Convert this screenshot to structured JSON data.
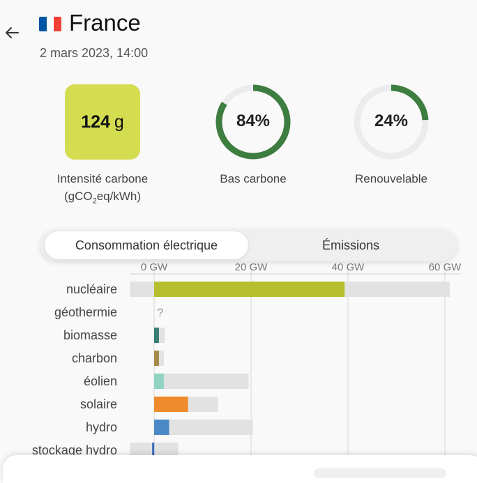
{
  "header": {
    "country": "France",
    "datetime": "2 mars 2023, 14:00",
    "flag_colors": [
      "#0055a4",
      "#ffffff",
      "#ef4135"
    ],
    "back_icon": "arrow-left-icon"
  },
  "metrics": {
    "intensity": {
      "value": "124",
      "unit": "g",
      "label_line1": "Intensité carbone",
      "label_line2_pre": "(gCO",
      "label_line2_sub": "2",
      "label_line2_post": "eq/kWh)",
      "color": "#d4dc50"
    },
    "low_carbon": {
      "text": "84%",
      "fraction": 0.84,
      "label": "Bas carbone",
      "color": "#3d7d3f"
    },
    "renewable": {
      "text": "24%",
      "fraction": 0.24,
      "label": "Renouvelable",
      "color": "#3d7d3f"
    }
  },
  "tabs": [
    {
      "label": "Consommation électrique",
      "active": true
    },
    {
      "label": "Émissions",
      "active": false
    }
  ],
  "chart_data": {
    "type": "bar",
    "x_ticks": [
      "0 GW",
      "20 GW",
      "40 GW",
      "60 GW"
    ],
    "xlim": [
      0,
      60
    ],
    "grid": true,
    "categories": [
      "nucléaire",
      "géothermie",
      "biomasse",
      "charbon",
      "éolien",
      "solaire",
      "hydro",
      "stockage hydro"
    ],
    "series": [
      {
        "values": [
          39.3,
          null,
          1.0,
          1.0,
          2.0,
          7.0,
          3.1,
          -0.4
        ]
      },
      {
        "values": [
          61.0,
          null,
          2.2,
          2.0,
          19.5,
          13.2,
          20.4,
          5.0
        ]
      }
    ],
    "negative_capacity": [
      -5.0,
      null,
      null,
      null,
      null,
      null,
      null,
      -5.0
    ],
    "bar_colors": [
      "#b5bf2e",
      "#999999",
      "#3a7d74",
      "#a68a4a",
      "#8fd3c2",
      "#ef8b2c",
      "#4a89c5",
      "#3566b8"
    ],
    "unknown_marker": "?"
  }
}
